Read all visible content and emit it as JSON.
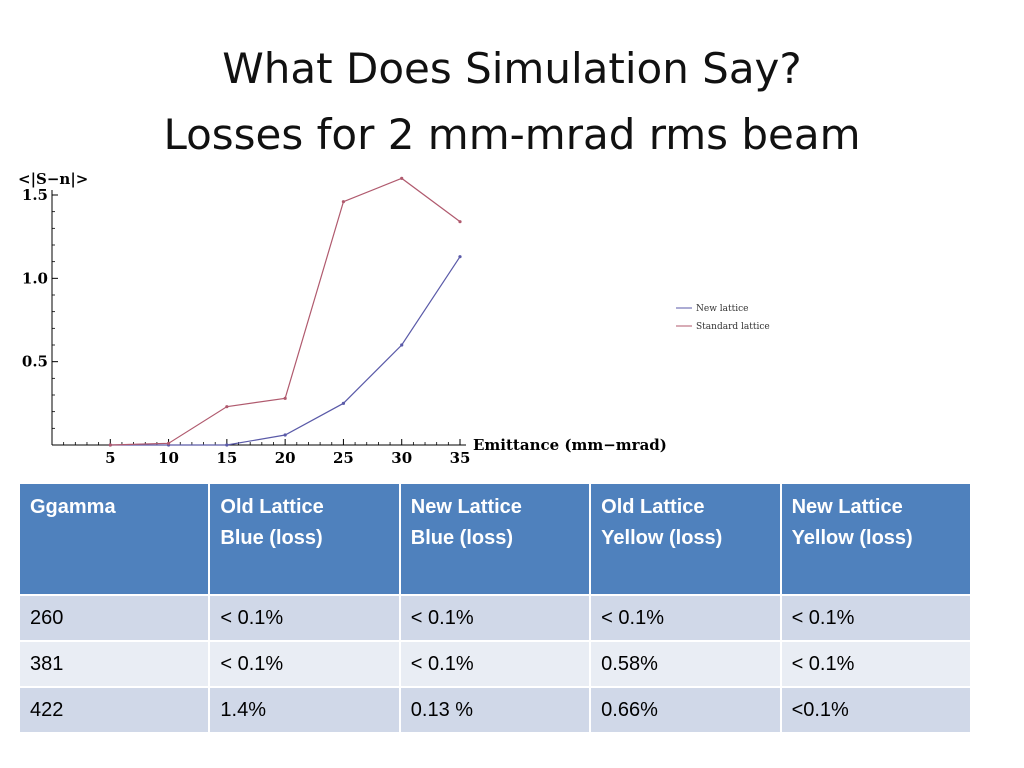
{
  "title": {
    "line1": "What Does Simulation Say?",
    "line2": "Losses for 2 mm-mrad rms beam"
  },
  "chart_data": {
    "type": "line",
    "ylabel": "<|S−n|>",
    "xlabel": "Emittance (mm−mrad)",
    "xlim": [
      0,
      35
    ],
    "ylim": [
      0,
      1.65
    ],
    "xticks": [
      5,
      10,
      15,
      20,
      25,
      30,
      35
    ],
    "yticks": [
      0.5,
      1.0,
      1.5
    ],
    "xtick_labels": [
      "5",
      "10",
      "15",
      "20",
      "25",
      "30",
      "35"
    ],
    "ytick_labels": [
      "0.5",
      "1.0",
      "1.5"
    ],
    "legend_position": "right",
    "series": [
      {
        "name": "New lattice",
        "color": "#5a5aa8",
        "x": [
          5,
          10,
          15,
          20,
          25,
          30,
          35
        ],
        "y": [
          0,
          0,
          0,
          0.06,
          0.25,
          0.6,
          1.13
        ]
      },
      {
        "name": "Standard lattice",
        "color": "#b05a6e",
        "x": [
          5,
          10,
          15,
          20,
          25,
          30,
          35
        ],
        "y": [
          0,
          0.01,
          0.23,
          0.28,
          1.46,
          1.6,
          1.34
        ]
      }
    ]
  },
  "table": {
    "headers": [
      [
        "Ggamma"
      ],
      [
        "Old Lattice",
        "Blue (loss)"
      ],
      [
        "New Lattice",
        "Blue (loss)"
      ],
      [
        "Old Lattice",
        "Yellow (loss)"
      ],
      [
        "New Lattice",
        "Yellow (loss)"
      ]
    ],
    "rows": [
      [
        "260",
        "< 0.1%",
        "< 0.1%",
        "< 0.1%",
        "< 0.1%"
      ],
      [
        "381",
        "< 0.1%",
        "< 0.1%",
        "0.58%",
        "< 0.1%"
      ],
      [
        "422",
        "1.4%",
        "0.13 %",
        "0.66%",
        "<0.1%"
      ]
    ]
  }
}
